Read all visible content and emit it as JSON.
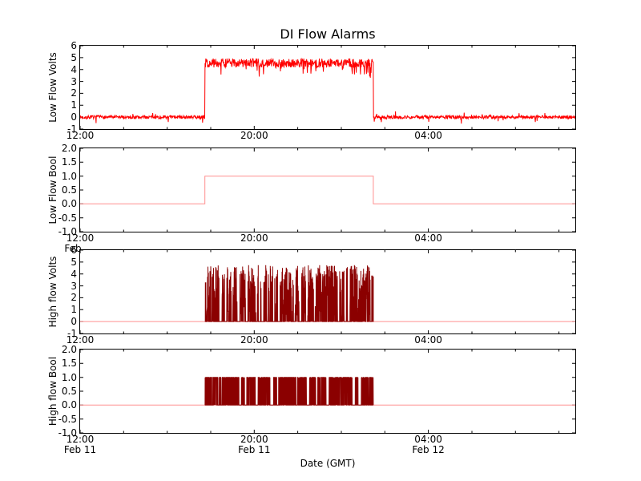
{
  "figure": {
    "title": "DI Flow Alarms",
    "xlabel": "Date (GMT)",
    "background": "#ffffff",
    "axis_color": "#000000"
  },
  "chart_data": [
    {
      "type": "line",
      "ylabel": "Low Flow Volts",
      "ylim": [
        -1,
        6
      ],
      "yticks": [
        {
          "v": 6,
          "label": "6"
        },
        {
          "v": 5,
          "label": "5"
        },
        {
          "v": 4,
          "label": "4"
        },
        {
          "v": 3,
          "label": "3"
        },
        {
          "v": 2,
          "label": "2"
        },
        {
          "v": 1,
          "label": "1"
        },
        {
          "v": 0,
          "label": "0"
        },
        {
          "v": -1,
          "label": "-1"
        }
      ],
      "x_total_hours": 22.75,
      "minor_tick_hours": 2,
      "xticks": [
        {
          "h": 0,
          "label": "12:00"
        },
        {
          "h": 8,
          "label": "20:00"
        },
        {
          "h": 16,
          "label": "04:00"
        }
      ],
      "date_labels": [],
      "partial_date": "",
      "series": [
        {
          "name": "low-flow-volts",
          "color": "#ff0000",
          "kind": "noisy_gate",
          "start_frac": 0.252,
          "end_frac": 0.592,
          "points": 1400,
          "seed": 7,
          "active_base": 4.55,
          "active_jitter": 0.75,
          "dip_chance": 0.1,
          "dip_max": 1.1,
          "max": 5.05,
          "idle_jitter": 0.28,
          "idle_spike_chance": 0.05,
          "idle_spike": 0.9
        }
      ]
    },
    {
      "type": "line",
      "ylabel": "Low Flow Bool",
      "ylim": [
        -1,
        2
      ],
      "yticks": [
        {
          "v": 2.0,
          "label": "2.0"
        },
        {
          "v": 1.5,
          "label": "1.5"
        },
        {
          "v": 1.0,
          "label": "1.0"
        },
        {
          "v": 0.5,
          "label": "0.5"
        },
        {
          "v": 0.0,
          "label": "0.0"
        },
        {
          "v": -0.5,
          "label": "-0.5"
        },
        {
          "v": -1.0,
          "label": "-1.0"
        }
      ],
      "x_total_hours": 22.75,
      "minor_tick_hours": 2,
      "xticks": [
        {
          "h": 0,
          "label": "12:00"
        },
        {
          "h": 8,
          "label": "20:00"
        },
        {
          "h": 16,
          "label": "04:00"
        }
      ],
      "date_labels": [],
      "partial_date": "Feb",
      "series": [
        {
          "name": "low-flow-bool",
          "color": "#ff8f8f",
          "kind": "step",
          "low": 0,
          "high": 1,
          "start_frac": 0.252,
          "end_frac": 0.592
        }
      ]
    },
    {
      "type": "line",
      "ylabel": "High flow Volts",
      "ylim": [
        -1,
        6
      ],
      "yticks": [
        {
          "v": 6,
          "label": "6"
        },
        {
          "v": 5,
          "label": "5"
        },
        {
          "v": 4,
          "label": "4"
        },
        {
          "v": 3,
          "label": "3"
        },
        {
          "v": 2,
          "label": "2"
        },
        {
          "v": 1,
          "label": "1"
        },
        {
          "v": 0,
          "label": "0"
        },
        {
          "v": -1,
          "label": "-1"
        }
      ],
      "x_total_hours": 22.75,
      "minor_tick_hours": 2,
      "xticks": [
        {
          "h": 0,
          "label": "12:00"
        },
        {
          "h": 8,
          "label": "20:00"
        },
        {
          "h": 16,
          "label": "04:00"
        }
      ],
      "date_labels": [],
      "partial_date": "",
      "series": [
        {
          "name": "zero-baseline",
          "color": "#ff8f8f",
          "kind": "flat",
          "level": 0
        },
        {
          "name": "high-flow-volts",
          "color": "#8b0000",
          "kind": "spiky_gate",
          "start_frac": 0.252,
          "end_frac": 0.592,
          "points": 1500,
          "seed": 13,
          "zero_chance": 0.4,
          "min": 0.5,
          "span": 4.25,
          "gap_chance": 0.015,
          "gap_max": 25
        }
      ]
    },
    {
      "type": "line",
      "ylabel": "High flow Bool",
      "ylim": [
        -1,
        2
      ],
      "yticks": [
        {
          "v": 2.0,
          "label": "2.0"
        },
        {
          "v": 1.5,
          "label": "1.5"
        },
        {
          "v": 1.0,
          "label": "1.0"
        },
        {
          "v": 0.5,
          "label": "0.5"
        },
        {
          "v": 0.0,
          "label": "0.0"
        },
        {
          "v": -0.5,
          "label": "-0.5"
        },
        {
          "v": -1.0,
          "label": "-1.0"
        }
      ],
      "x_total_hours": 22.75,
      "minor_tick_hours": 2,
      "xticks": [
        {
          "h": 0,
          "label": "12:00"
        },
        {
          "h": 8,
          "label": "20:00"
        },
        {
          "h": 16,
          "label": "04:00"
        }
      ],
      "date_labels": [
        "Feb 11",
        "Feb 11",
        "Feb 12"
      ],
      "partial_date": "",
      "series": [
        {
          "name": "zero-baseline",
          "color": "#ff8f8f",
          "kind": "flat",
          "level": 0
        },
        {
          "name": "high-flow-bool",
          "color": "#8b0000",
          "kind": "telegraph",
          "start_frac": 0.252,
          "end_frac": 0.592,
          "points": 1500,
          "seed": 21,
          "high": 1,
          "zero_chance": 0.5,
          "gap_chance": 0.015,
          "gap_max": 25
        }
      ]
    }
  ]
}
